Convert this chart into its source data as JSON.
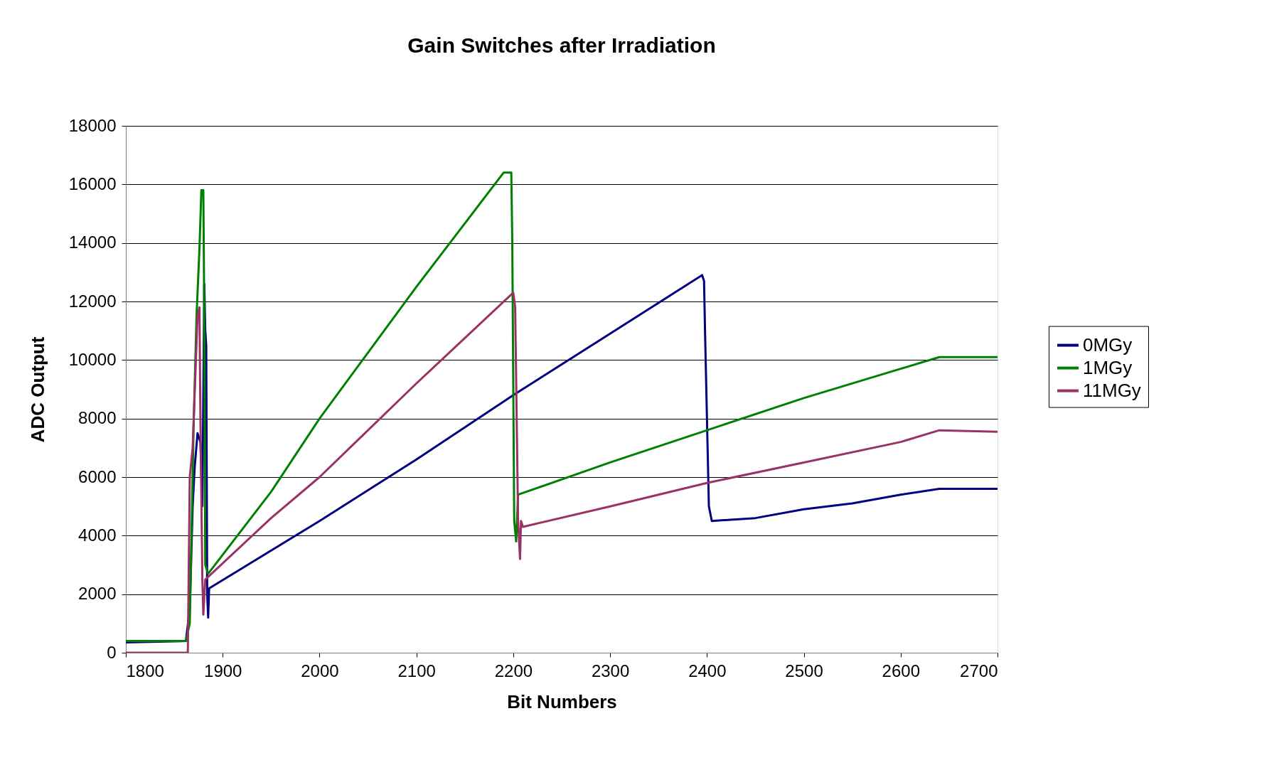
{
  "chart_data": {
    "type": "line",
    "title": "Gain Switches after Irradiation",
    "xlabel": "Bit Numbers",
    "ylabel": "ADC Output",
    "xlim": [
      1800,
      2700
    ],
    "xticks": [
      1800,
      1900,
      2000,
      2100,
      2200,
      2300,
      2400,
      2500,
      2600,
      2700
    ],
    "ylim": [
      0,
      18000
    ],
    "yticks": [
      0,
      2000,
      4000,
      6000,
      8000,
      10000,
      12000,
      14000,
      16000,
      18000
    ],
    "grid": "y",
    "legend": "right",
    "marker": "none",
    "line_style": "solid",
    "series": [
      {
        "name": "0MGy",
        "color": "#000080",
        "x": [
          1800,
          1862,
          1866,
          1869,
          1871,
          1874,
          1877,
          1879,
          1881,
          1882,
          1883,
          1884,
          1885,
          1886,
          2000,
          2100,
          2200,
          2300,
          2395,
          2397,
          2398,
          2400,
          2402,
          2405,
          2450,
          2500,
          2550,
          2600,
          2640,
          2700
        ],
        "values": [
          350,
          400,
          1500,
          5000,
          6300,
          7500,
          7200,
          5000,
          12600,
          11000,
          10500,
          2000,
          1200,
          2200,
          4500,
          6600,
          8800,
          10900,
          12900,
          12700,
          11000,
          8000,
          5000,
          4500,
          4600,
          4900,
          5100,
          5400,
          5600,
          5600
        ]
      },
      {
        "name": "1MGy",
        "color": "#008000",
        "x": [
          1800,
          1862,
          1866,
          1870,
          1873,
          1876,
          1878,
          1880,
          1881,
          1882,
          1885,
          1950,
          2000,
          2100,
          2190,
          2198,
          2199,
          2201,
          2203,
          2205,
          2300,
          2400,
          2500,
          2600,
          2640,
          2700
        ],
        "values": [
          400,
          400,
          1000,
          7800,
          11500,
          13800,
          15800,
          15800,
          11500,
          3000,
          2700,
          5500,
          8000,
          12500,
          16400,
          16400,
          14000,
          4500,
          3800,
          5400,
          6500,
          7600,
          8700,
          9700,
          10100,
          10100
        ]
      },
      {
        "name": "11MGy",
        "color": "#993366",
        "x": [
          1800,
          1864,
          1866,
          1869,
          1874,
          1876,
          1877,
          1879,
          1880,
          1882,
          1950,
          2000,
          2100,
          2200,
          2202,
          2205,
          2207,
          2208,
          2210,
          2300,
          2400,
          2500,
          2600,
          2640,
          2700
        ],
        "values": [
          0,
          0,
          6000,
          7000,
          11500,
          11800,
          8000,
          2500,
          1300,
          2500,
          4600,
          6000,
          9200,
          12300,
          11800,
          4500,
          3200,
          4500,
          4300,
          5000,
          5800,
          6500,
          7200,
          7600,
          7550
        ]
      }
    ]
  }
}
